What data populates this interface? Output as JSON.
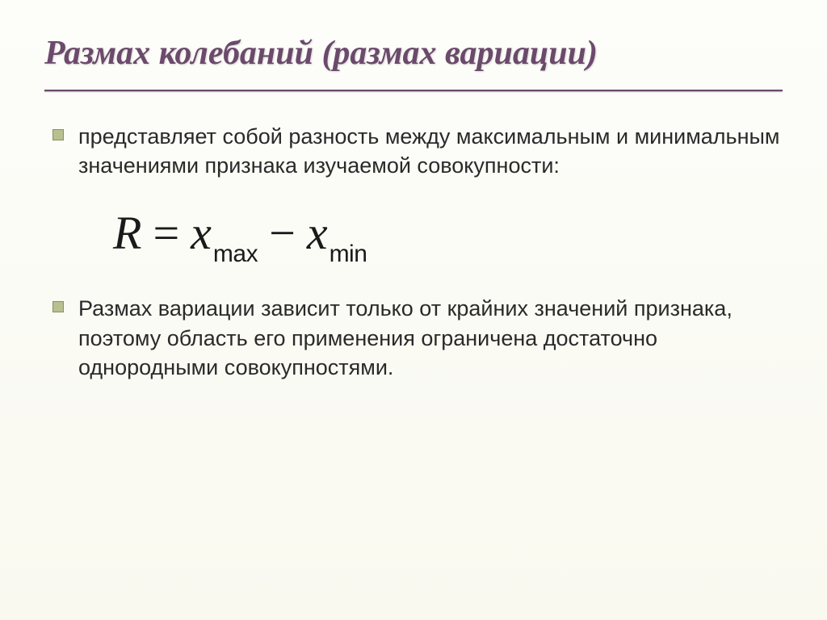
{
  "title": {
    "text": "Размах колебаний (размах вариации)",
    "color": "#6b4a6b",
    "fontsize": 42
  },
  "underline": {
    "color": "#6b4a6b"
  },
  "bullets": [
    {
      "text": "представляет собой разность между максимальным и минимальным значениями признака изучаемой совокупности:"
    },
    {
      "text": "Размах вариации зависит только от крайних значений признака, поэтому область его применения ограничена достаточно однородными совокупностями."
    }
  ],
  "bullet_style": {
    "fill": "#b8c090",
    "border": "#8a9060",
    "size": 14
  },
  "formula": {
    "lhs": "R",
    "eq": "=",
    "term1_var": "x",
    "term1_sub": "max",
    "minus": "−",
    "term2_var": "x",
    "term2_sub": "min",
    "fontsize": 58,
    "color": "#1a1a1a"
  },
  "body_text": {
    "fontsize": 27,
    "color": "#2a2a2a"
  },
  "background": {
    "top": "#fdfdfa",
    "bottom": "#f9f9f0"
  }
}
